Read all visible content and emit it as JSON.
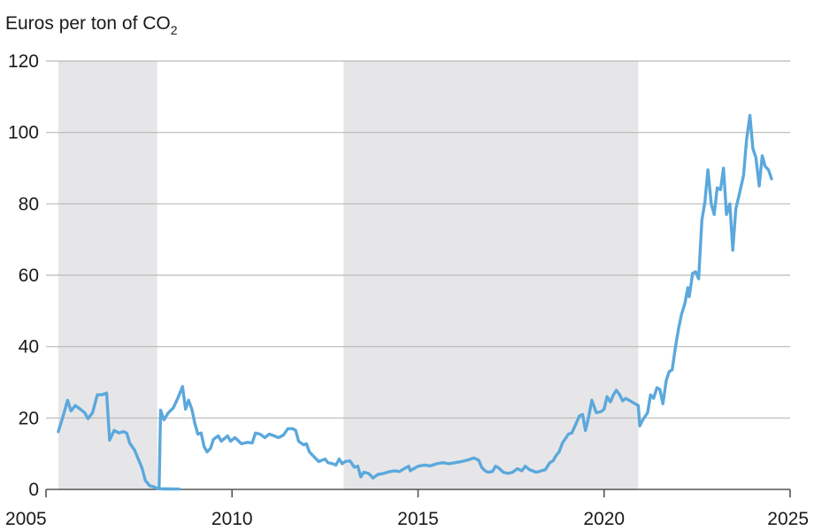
{
  "chart_data": {
    "type": "line",
    "title": "",
    "ylabel": {
      "prefix": "Euros per ton of CO",
      "subscript": "2"
    },
    "xlabel": "",
    "xlim": [
      2005,
      2025
    ],
    "ylim": [
      0,
      120
    ],
    "x_ticks": [
      "2005",
      "2010",
      "2015",
      "2020",
      "2025"
    ],
    "y_ticks": [
      "0",
      "20",
      "40",
      "60",
      "80",
      "100",
      "120"
    ],
    "grid": "horizontal",
    "shaded_periods": [
      {
        "start": 2005.33,
        "end": 2007.99
      },
      {
        "start": 2013.0,
        "end": 2020.92
      }
    ],
    "colors": {
      "line": "#5ba8dc",
      "shade": "#e6e6e8",
      "grid": "#b9b9b9"
    },
    "series": [
      {
        "points": [
          [
            2005.33,
            16.2
          ],
          [
            2005.46,
            20.5
          ],
          [
            2005.58,
            25.0
          ],
          [
            2005.67,
            22.0
          ],
          [
            2005.79,
            23.5
          ],
          [
            2005.92,
            22.5
          ],
          [
            2006.04,
            21.5
          ],
          [
            2006.13,
            19.8
          ],
          [
            2006.25,
            21.5
          ],
          [
            2006.38,
            26.5
          ],
          [
            2006.5,
            26.5
          ],
          [
            2006.63,
            27.0
          ],
          [
            2006.71,
            13.8
          ],
          [
            2006.83,
            16.5
          ],
          [
            2006.96,
            15.8
          ],
          [
            2007.08,
            16.2
          ],
          [
            2007.17,
            15.8
          ],
          [
            2007.25,
            13.0
          ],
          [
            2007.38,
            11.0
          ],
          [
            2007.5,
            8.0
          ],
          [
            2007.58,
            6.0
          ],
          [
            2007.67,
            2.5
          ],
          [
            2007.79,
            1.0
          ],
          [
            2007.88,
            0.8
          ],
          [
            2007.96,
            0.4
          ],
          [
            2008.04,
            0.2
          ],
          [
            2008.17,
            0.1
          ],
          [
            2008.33,
            0.1
          ],
          [
            2008.5,
            0.1
          ],
          [
            2008.58,
            0.1
          ],
          [
            2008.04,
            0.2
          ],
          [
            2008.08,
            22.2
          ],
          [
            2008.17,
            19.5
          ],
          [
            2008.29,
            21.5
          ],
          [
            2008.42,
            22.8
          ],
          [
            2008.54,
            25.5
          ],
          [
            2008.67,
            28.8
          ],
          [
            2008.75,
            22.5
          ],
          [
            2008.83,
            25.0
          ],
          [
            2008.92,
            22.5
          ],
          [
            2009.0,
            18.5
          ],
          [
            2009.08,
            15.5
          ],
          [
            2009.17,
            15.8
          ],
          [
            2009.25,
            12.0
          ],
          [
            2009.33,
            10.5
          ],
          [
            2009.42,
            11.5
          ],
          [
            2009.5,
            14.0
          ],
          [
            2009.63,
            15.0
          ],
          [
            2009.71,
            13.5
          ],
          [
            2009.88,
            15.0
          ],
          [
            2009.96,
            13.5
          ],
          [
            2010.08,
            14.5
          ],
          [
            2010.25,
            12.8
          ],
          [
            2010.42,
            13.2
          ],
          [
            2010.54,
            13.0
          ],
          [
            2010.63,
            15.8
          ],
          [
            2010.75,
            15.5
          ],
          [
            2010.88,
            14.5
          ],
          [
            2011.0,
            15.5
          ],
          [
            2011.13,
            15.0
          ],
          [
            2011.25,
            14.5
          ],
          [
            2011.38,
            15.2
          ],
          [
            2011.5,
            17.0
          ],
          [
            2011.63,
            17.0
          ],
          [
            2011.71,
            16.5
          ],
          [
            2011.79,
            13.5
          ],
          [
            2011.92,
            12.5
          ],
          [
            2012.0,
            12.8
          ],
          [
            2012.08,
            10.5
          ],
          [
            2012.17,
            9.5
          ],
          [
            2012.33,
            7.8
          ],
          [
            2012.5,
            8.5
          ],
          [
            2012.58,
            7.5
          ],
          [
            2012.71,
            7.2
          ],
          [
            2012.79,
            6.8
          ],
          [
            2012.88,
            8.5
          ],
          [
            2012.96,
            7.2
          ],
          [
            2013.04,
            7.8
          ],
          [
            2013.17,
            8.0
          ],
          [
            2013.29,
            6.2
          ],
          [
            2013.38,
            6.5
          ],
          [
            2013.46,
            3.5
          ],
          [
            2013.54,
            4.8
          ],
          [
            2013.67,
            4.5
          ],
          [
            2013.79,
            3.2
          ],
          [
            2013.92,
            4.2
          ],
          [
            2014.08,
            4.5
          ],
          [
            2014.17,
            4.8
          ],
          [
            2014.25,
            5.0
          ],
          [
            2014.38,
            5.2
          ],
          [
            2014.5,
            5.0
          ],
          [
            2014.63,
            5.8
          ],
          [
            2014.75,
            6.5
          ],
          [
            2014.79,
            5.2
          ],
          [
            2014.88,
            5.8
          ],
          [
            2015.0,
            6.5
          ],
          [
            2015.17,
            6.8
          ],
          [
            2015.33,
            6.6
          ],
          [
            2015.5,
            7.2
          ],
          [
            2015.67,
            7.5
          ],
          [
            2015.83,
            7.2
          ],
          [
            2016.0,
            7.5
          ],
          [
            2016.17,
            7.8
          ],
          [
            2016.33,
            8.2
          ],
          [
            2016.5,
            8.8
          ],
          [
            2016.63,
            8.2
          ],
          [
            2016.71,
            6.2
          ],
          [
            2016.79,
            5.3
          ],
          [
            2016.88,
            4.8
          ],
          [
            2017.0,
            5.0
          ],
          [
            2017.08,
            6.5
          ],
          [
            2017.17,
            6.0
          ],
          [
            2017.29,
            4.8
          ],
          [
            2017.42,
            4.5
          ],
          [
            2017.54,
            4.8
          ],
          [
            2017.67,
            5.8
          ],
          [
            2017.79,
            5.2
          ],
          [
            2017.88,
            6.5
          ],
          [
            2018.0,
            5.5
          ],
          [
            2018.08,
            5.2
          ],
          [
            2018.17,
            4.8
          ],
          [
            2018.25,
            5.0
          ],
          [
            2018.42,
            5.5
          ],
          [
            2018.54,
            7.5
          ],
          [
            2018.63,
            8.0
          ],
          [
            2018.71,
            9.5
          ],
          [
            2018.79,
            10.5
          ],
          [
            2018.88,
            13.0
          ],
          [
            2018.96,
            14.2
          ],
          [
            2019.04,
            15.5
          ],
          [
            2019.13,
            15.8
          ],
          [
            2019.25,
            18.5
          ],
          [
            2019.33,
            20.5
          ],
          [
            2019.42,
            21.0
          ],
          [
            2019.5,
            16.5
          ],
          [
            2019.58,
            20.0
          ],
          [
            2019.67,
            25.0
          ],
          [
            2019.79,
            21.5
          ],
          [
            2019.92,
            21.8
          ],
          [
            2020.0,
            22.5
          ],
          [
            2020.08,
            26.0
          ],
          [
            2020.17,
            24.5
          ],
          [
            2020.25,
            26.5
          ],
          [
            2020.33,
            27.8
          ],
          [
            2020.42,
            26.5
          ],
          [
            2020.5,
            24.8
          ],
          [
            2020.58,
            25.5
          ],
          [
            2020.67,
            25.0
          ],
          [
            2020.75,
            24.5
          ],
          [
            2020.83,
            24.0
          ],
          [
            2020.92,
            23.5
          ],
          [
            2020.96,
            17.8
          ],
          [
            2021.04,
            19.5
          ],
          [
            2021.17,
            21.5
          ],
          [
            2021.25,
            26.5
          ],
          [
            2021.33,
            25.5
          ],
          [
            2021.42,
            28.5
          ],
          [
            2021.5,
            28.0
          ],
          [
            2021.58,
            24.0
          ],
          [
            2021.67,
            30.5
          ],
          [
            2021.75,
            33.0
          ],
          [
            2021.83,
            33.5
          ],
          [
            2021.92,
            40.0
          ],
          [
            2022.0,
            45.0
          ],
          [
            2022.08,
            49.0
          ],
          [
            2022.17,
            52.0
          ],
          [
            2022.25,
            56.5
          ],
          [
            2022.29,
            54.0
          ],
          [
            2022.38,
            60.5
          ],
          [
            2022.46,
            61.0
          ],
          [
            2022.54,
            59.0
          ],
          [
            2022.63,
            75.5
          ],
          [
            2022.71,
            80.5
          ],
          [
            2022.79,
            89.5
          ],
          [
            2022.88,
            80.0
          ],
          [
            2022.96,
            77.0
          ],
          [
            2023.04,
            84.5
          ],
          [
            2023.13,
            84.0
          ],
          [
            2023.21,
            90.0
          ],
          [
            2023.29,
            77.0
          ],
          [
            2023.38,
            80.0
          ],
          [
            2023.46,
            67.0
          ],
          [
            2023.54,
            78.5
          ],
          [
            2023.63,
            82.5
          ],
          [
            2023.75,
            88.0
          ],
          [
            2023.83,
            98.0
          ],
          [
            2023.92,
            104.8
          ],
          [
            2024.0,
            95.5
          ],
          [
            2024.08,
            93.0
          ],
          [
            2024.17,
            85.0
          ],
          [
            2024.25,
            93.5
          ],
          [
            2024.33,
            90.5
          ],
          [
            2024.42,
            89.5
          ],
          [
            2024.5,
            87.0
          ]
        ]
      }
    ]
  }
}
